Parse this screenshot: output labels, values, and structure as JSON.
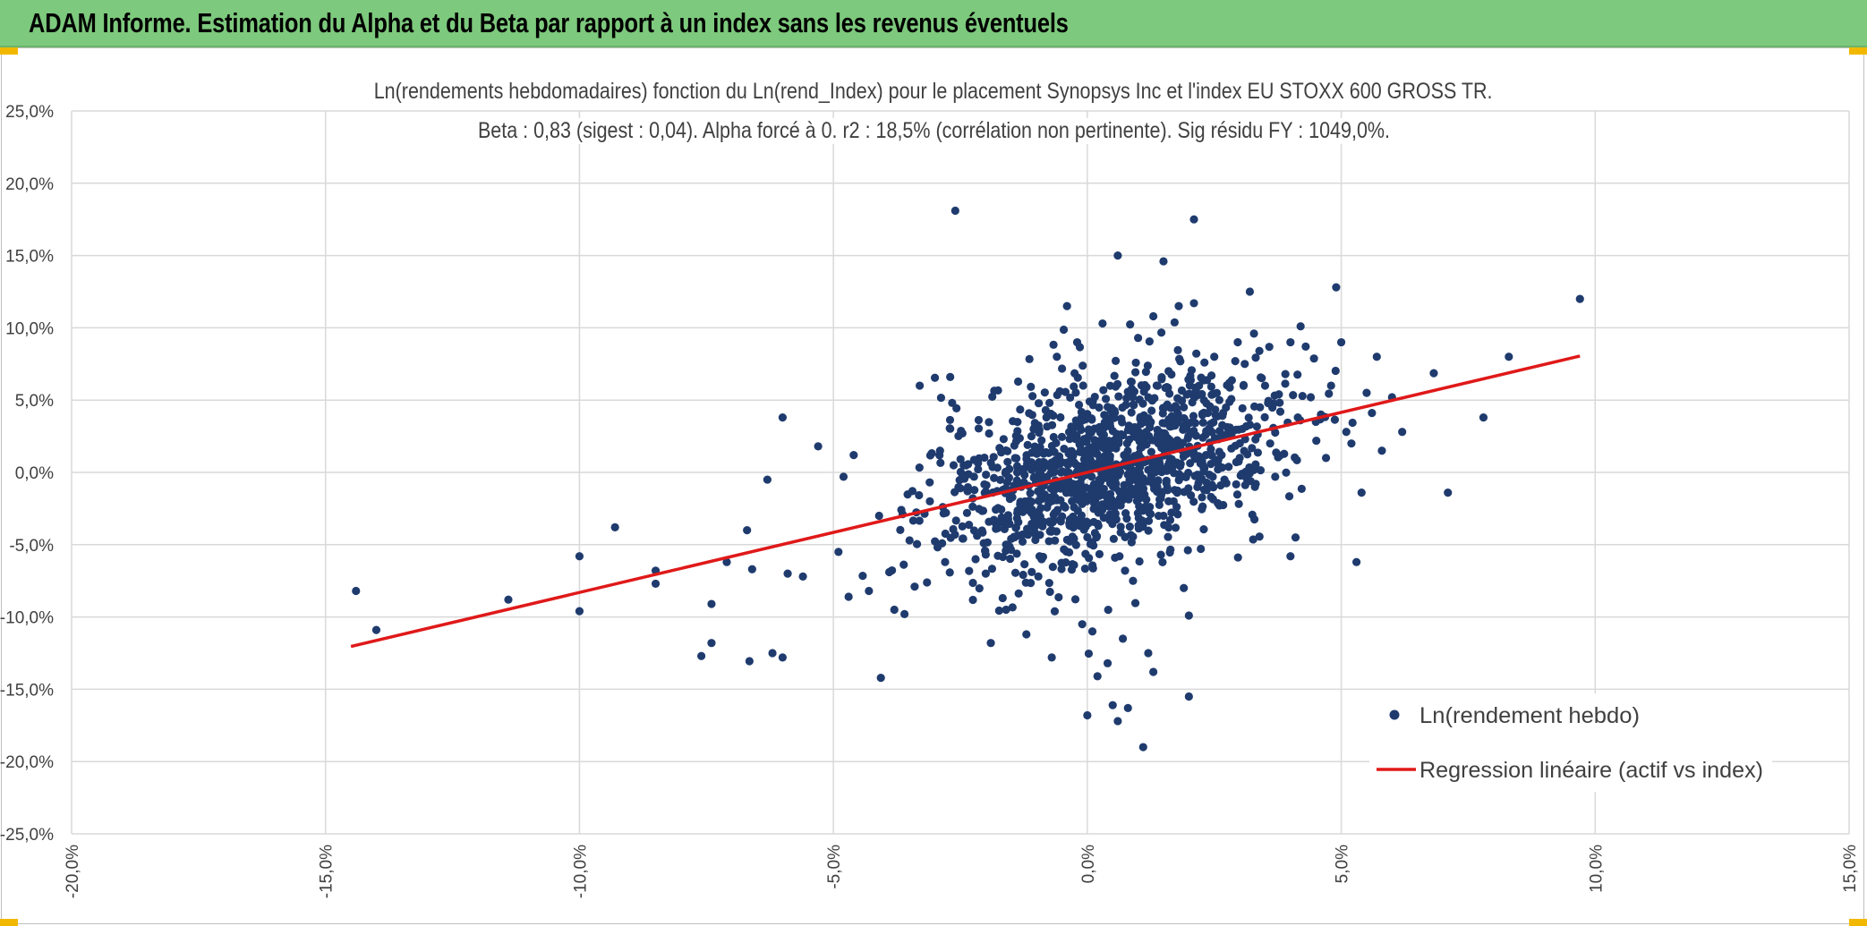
{
  "banner": {
    "title": "ADAM Informe. Estimation du Alpha et du Beta par rapport à un index sans les revenus éventuels",
    "color": "#7dc97d"
  },
  "chart_data": {
    "type": "scatter",
    "title": "Ln(rendements hebdomadaires) fonction du Ln(rend_Index) pour le placement Synopsys Inc et l'index EU STOXX 600 GROSS TR.",
    "subtitle": "Beta : 0,83 (sigest : 0,04). Alpha forcé à 0. r2 : 18,5% (corrélation non pertinente). Sig résidu FY : 1049,0%.",
    "xlabel": "",
    "ylabel": "",
    "xlim": [
      -0.2,
      0.15
    ],
    "ylim": [
      -0.25,
      0.25
    ],
    "x_ticks": [
      "-20,0%",
      "-15,0%",
      "-10,0%",
      "-5,0%",
      "0,0%",
      "5,0%",
      "10,0%",
      "15,0%"
    ],
    "y_ticks": [
      "25,0%",
      "20,0%",
      "15,0%",
      "10,0%",
      "5,0%",
      "0,0%",
      "-5,0%",
      "-10,0%",
      "-15,0%",
      "-20,0%",
      "-25,0%"
    ],
    "grid": true,
    "legend_position": "bottom-right",
    "series": [
      {
        "name": "Ln(rendement hebdo)",
        "kind": "scatter",
        "color": "#1f3b6e",
        "points": [
          [
            -0.144,
            -0.082
          ],
          [
            -0.14,
            -0.109
          ],
          [
            -0.114,
            -0.088
          ],
          [
            -0.1,
            -0.096
          ],
          [
            -0.1,
            -0.058
          ],
          [
            -0.093,
            -0.038
          ],
          [
            -0.085,
            -0.068
          ],
          [
            -0.085,
            -0.077
          ],
          [
            -0.076,
            -0.127
          ],
          [
            -0.074,
            -0.118
          ],
          [
            -0.074,
            -0.091
          ],
          [
            -0.071,
            -0.062
          ],
          [
            -0.067,
            -0.04
          ],
          [
            -0.066,
            -0.067
          ],
          [
            -0.063,
            -0.005
          ],
          [
            -0.062,
            -0.125
          ],
          [
            -0.06,
            -0.128
          ],
          [
            -0.06,
            0.038
          ],
          [
            -0.059,
            -0.07
          ],
          [
            -0.056,
            -0.072
          ],
          [
            -0.053,
            0.018
          ],
          [
            -0.049,
            -0.055
          ],
          [
            -0.048,
            -0.003
          ],
          [
            -0.047,
            -0.086
          ],
          [
            -0.046,
            0.012
          ],
          [
            -0.043,
            -0.082
          ],
          [
            -0.041,
            -0.03
          ],
          [
            -0.039,
            -0.069
          ],
          [
            -0.038,
            -0.095
          ],
          [
            -0.036,
            -0.098
          ],
          [
            -0.035,
            -0.047
          ],
          [
            -0.034,
            -0.079
          ],
          [
            -0.033,
            0.06
          ],
          [
            -0.031,
            -0.02
          ],
          [
            -0.029,
            0.015
          ],
          [
            -0.028,
            -0.062
          ],
          [
            -0.027,
            0.066
          ],
          [
            -0.026,
            0.181
          ],
          [
            -0.025,
            -0.011
          ],
          [
            -0.022,
            -0.06
          ],
          [
            -0.02,
            -0.07
          ],
          [
            -0.019,
            -0.118
          ],
          [
            -0.018,
            -0.039
          ],
          [
            -0.016,
            -0.095
          ],
          [
            -0.015,
            -0.046
          ],
          [
            -0.013,
            -0.01
          ],
          [
            -0.012,
            -0.112
          ],
          [
            -0.011,
            0.025
          ],
          [
            -0.009,
            -0.06
          ],
          [
            -0.008,
            -0.004
          ],
          [
            -0.007,
            -0.128
          ],
          [
            -0.006,
            0.08
          ],
          [
            -0.004,
            0.115
          ],
          [
            -0.002,
            0.09
          ],
          [
            -0.001,
            -0.105
          ],
          [
            0.0,
            -0.168
          ],
          [
            0.001,
            -0.11
          ],
          [
            0.002,
            -0.141
          ],
          [
            0.003,
            0.103
          ],
          [
            0.004,
            -0.132
          ],
          [
            0.005,
            -0.161
          ],
          [
            0.006,
            -0.172
          ],
          [
            0.006,
            0.15
          ],
          [
            0.007,
            -0.115
          ],
          [
            0.008,
            -0.163
          ],
          [
            0.009,
            -0.075
          ],
          [
            0.01,
            0.093
          ],
          [
            0.011,
            -0.19
          ],
          [
            0.012,
            -0.125
          ],
          [
            0.013,
            0.108
          ],
          [
            0.013,
            -0.138
          ],
          [
            0.014,
            0.02
          ],
          [
            0.015,
            -0.03
          ],
          [
            0.015,
            0.146
          ],
          [
            0.016,
            0.07
          ],
          [
            0.017,
            -0.02
          ],
          [
            0.018,
            0.115
          ],
          [
            0.019,
            0.045
          ],
          [
            0.019,
            -0.08
          ],
          [
            0.02,
            -0.099
          ],
          [
            0.02,
            -0.155
          ],
          [
            0.021,
            0.175
          ],
          [
            0.021,
            0.117
          ],
          [
            0.022,
            0.06
          ],
          [
            0.023,
            -0.012
          ],
          [
            0.024,
            0.03
          ],
          [
            0.025,
            0.08
          ],
          [
            0.026,
            0.05
          ],
          [
            0.027,
            -0.005
          ],
          [
            0.028,
            0.062
          ],
          [
            0.03,
            0.01
          ],
          [
            0.031,
            0.075
          ],
          [
            0.032,
            0.125
          ],
          [
            0.033,
            -0.01
          ],
          [
            0.034,
            0.045
          ],
          [
            0.035,
            0.06
          ],
          [
            0.036,
            0.02
          ],
          [
            0.037,
            -0.003
          ],
          [
            0.038,
            0.042
          ],
          [
            0.039,
            0.068
          ],
          [
            0.04,
            0.09
          ],
          [
            0.04,
            -0.058
          ],
          [
            0.041,
            -0.045
          ],
          [
            0.042,
            0.101
          ],
          [
            0.043,
            0.087
          ],
          [
            0.044,
            0.052
          ],
          [
            0.045,
            0.035
          ],
          [
            0.046,
            0.04
          ],
          [
            0.047,
            0.01
          ],
          [
            0.048,
            0.06
          ],
          [
            0.049,
            0.128
          ],
          [
            0.05,
            0.09
          ],
          [
            0.051,
            0.028
          ],
          [
            0.052,
            0.02
          ],
          [
            0.053,
            -0.062
          ],
          [
            0.054,
            -0.014
          ],
          [
            0.055,
            0.055
          ],
          [
            0.057,
            0.08
          ],
          [
            0.058,
            0.015
          ],
          [
            0.06,
            0.052
          ],
          [
            0.062,
            0.028
          ],
          [
            0.071,
            -0.014
          ],
          [
            0.078,
            0.038
          ],
          [
            0.083,
            0.08
          ],
          [
            0.097,
            0.12
          ]
        ]
      },
      {
        "name": "Regression linéaire (actif vs index)",
        "kind": "line",
        "color": "#e01919",
        "beta": 0.83,
        "x": [
          -0.145,
          0.097
        ],
        "y": [
          -0.1204,
          0.0805
        ]
      }
    ]
  }
}
